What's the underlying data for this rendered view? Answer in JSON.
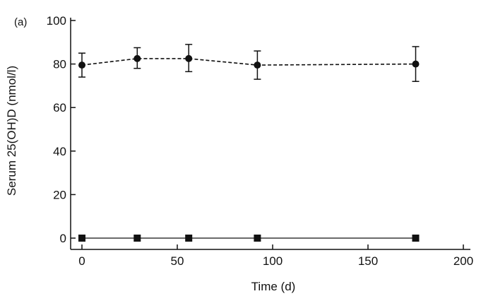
{
  "chart_data": {
    "type": "line",
    "panel_label": "(a)",
    "xlabel": "Time (d)",
    "ylabel": "Serum 25(OH)D (nmol/l)",
    "xlim": [
      0,
      200
    ],
    "ylim": [
      0,
      100
    ],
    "x_ticks": [
      0,
      50,
      100,
      150,
      200
    ],
    "y_ticks": [
      0,
      20,
      40,
      60,
      80,
      100
    ],
    "grid": false,
    "series": [
      {
        "marker": "circle",
        "line_style": "dashed",
        "color": "#111111",
        "points": [
          {
            "x": 0,
            "y": 79.5,
            "err_low": 74,
            "err_high": 85
          },
          {
            "x": 29,
            "y": 82.5,
            "err_low": 78,
            "err_high": 87.5
          },
          {
            "x": 56,
            "y": 82.5,
            "err_low": 76.5,
            "err_high": 89
          },
          {
            "x": 92,
            "y": 79.5,
            "err_low": 73,
            "err_high": 86
          },
          {
            "x": 175,
            "y": 80,
            "err_low": 72,
            "err_high": 88
          }
        ]
      },
      {
        "marker": "square",
        "line_style": "solid",
        "color": "#111111",
        "points": [
          {
            "x": 0,
            "y": 0
          },
          {
            "x": 29,
            "y": 0
          },
          {
            "x": 56,
            "y": 0
          },
          {
            "x": 92,
            "y": 0
          },
          {
            "x": 175,
            "y": 0
          }
        ]
      }
    ]
  }
}
